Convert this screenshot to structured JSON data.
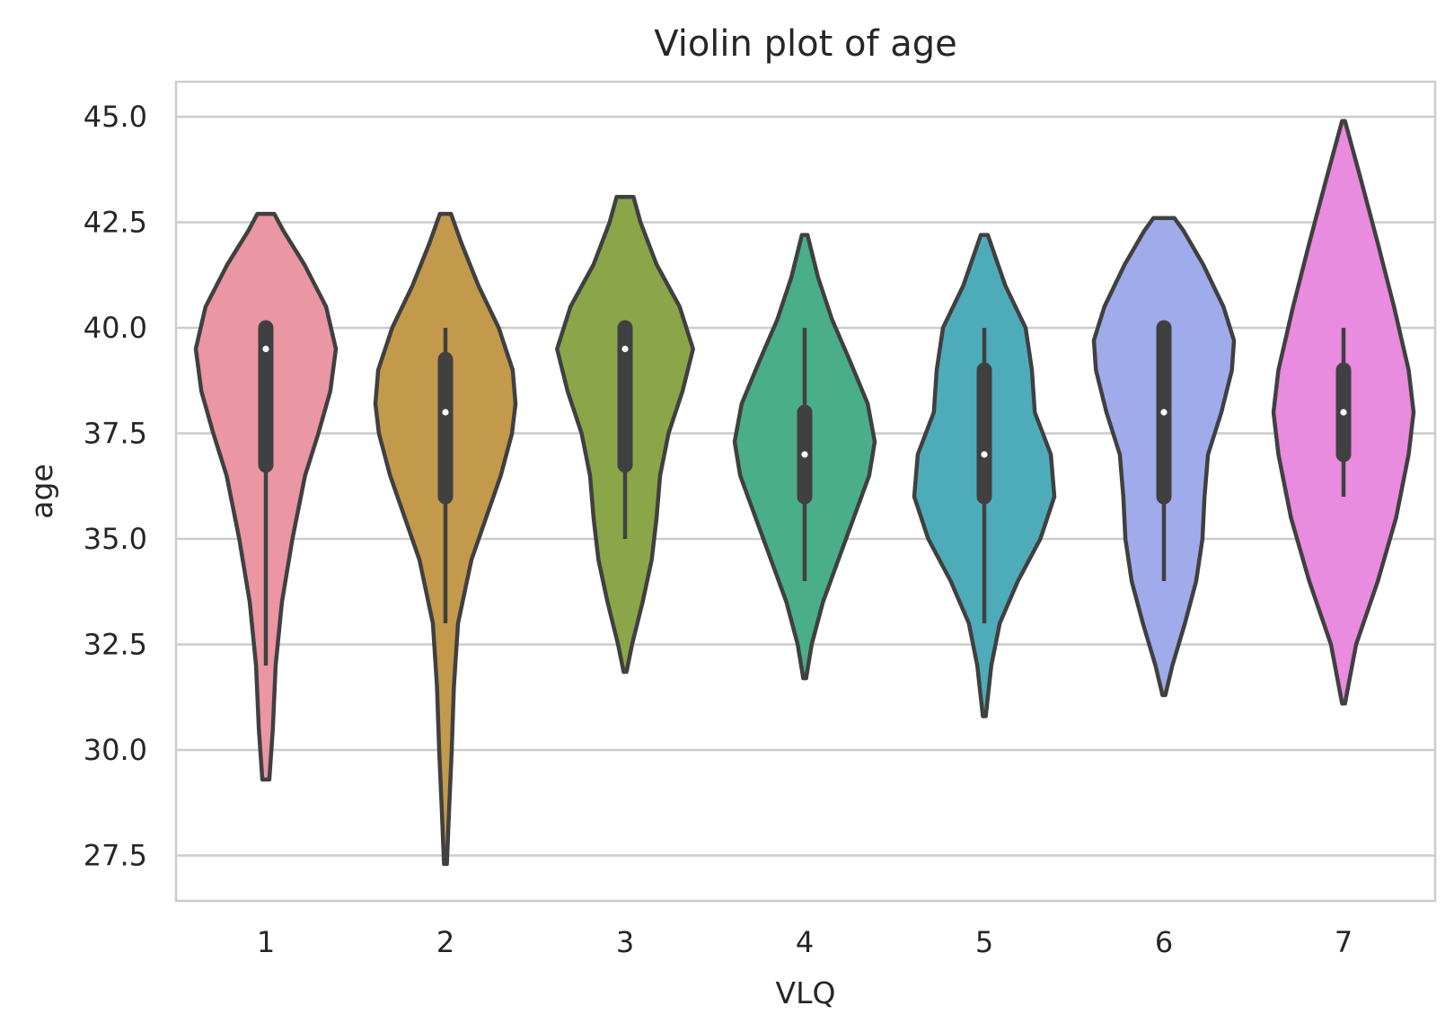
{
  "chart_data": {
    "type": "violin",
    "title": "Violin plot of age",
    "xlabel": "VLQ",
    "ylabel": "age",
    "categories": [
      "1",
      "2",
      "3",
      "4",
      "5",
      "6",
      "7"
    ],
    "yticks": [
      "27.5",
      "30.0",
      "32.5",
      "35.0",
      "37.5",
      "40.0",
      "42.5",
      "45.0"
    ],
    "ylim": [
      26.4,
      45.8
    ],
    "grid": true,
    "box_color": "#404040",
    "median_color": "#ffffff",
    "violins": [
      {
        "category": "1",
        "color": "#ea96a3",
        "min": 29.3,
        "max": 42.7,
        "whisker_low": 32.0,
        "whisker_high": 40.0,
        "q1": 36.75,
        "q3": 40.0,
        "median": 39.5,
        "profile": [
          [
            29.3,
            0.05
          ],
          [
            30.5,
            0.1
          ],
          [
            32.0,
            0.14
          ],
          [
            33.5,
            0.23
          ],
          [
            35.0,
            0.38
          ],
          [
            36.5,
            0.56
          ],
          [
            37.5,
            0.75
          ],
          [
            38.5,
            0.92
          ],
          [
            39.5,
            1.0
          ],
          [
            40.5,
            0.86
          ],
          [
            41.5,
            0.55
          ],
          [
            42.3,
            0.25
          ],
          [
            42.7,
            0.12
          ]
        ]
      },
      {
        "category": "2",
        "color": "#c39a4b",
        "min": 27.3,
        "max": 42.7,
        "whisker_low": 33.0,
        "whisker_high": 40.0,
        "q1": 36.0,
        "q3": 39.25,
        "median": 38.0,
        "profile": [
          [
            27.3,
            0.02
          ],
          [
            28.5,
            0.05
          ],
          [
            30.0,
            0.09
          ],
          [
            31.5,
            0.12
          ],
          [
            33.0,
            0.18
          ],
          [
            34.5,
            0.37
          ],
          [
            35.5,
            0.58
          ],
          [
            36.5,
            0.79
          ],
          [
            37.5,
            0.95
          ],
          [
            38.2,
            1.0
          ],
          [
            39.0,
            0.96
          ],
          [
            40.0,
            0.76
          ],
          [
            41.0,
            0.47
          ],
          [
            42.0,
            0.23
          ],
          [
            42.7,
            0.08
          ]
        ]
      },
      {
        "category": "3",
        "color": "#8aa648",
        "min": 31.85,
        "max": 43.1,
        "whisker_low": 35.0,
        "whisker_high": 40.0,
        "q1": 36.75,
        "q3": 40.0,
        "median": 39.5,
        "profile": [
          [
            31.85,
            0.02
          ],
          [
            32.5,
            0.1
          ],
          [
            33.5,
            0.25
          ],
          [
            34.5,
            0.38
          ],
          [
            35.5,
            0.45
          ],
          [
            36.5,
            0.5
          ],
          [
            37.5,
            0.62
          ],
          [
            38.5,
            0.82
          ],
          [
            39.5,
            0.97
          ],
          [
            40.5,
            0.78
          ],
          [
            41.5,
            0.45
          ],
          [
            42.5,
            0.22
          ],
          [
            43.1,
            0.12
          ]
        ]
      },
      {
        "category": "4",
        "color": "#4aae8a",
        "min": 31.7,
        "max": 42.2,
        "whisker_low": 34.0,
        "whisker_high": 40.0,
        "q1": 36.0,
        "q3": 38.0,
        "median": 37.0,
        "profile": [
          [
            31.7,
            0.02
          ],
          [
            32.5,
            0.1
          ],
          [
            33.5,
            0.26
          ],
          [
            34.5,
            0.48
          ],
          [
            35.5,
            0.7
          ],
          [
            36.5,
            0.92
          ],
          [
            37.3,
            1.0
          ],
          [
            38.2,
            0.9
          ],
          [
            39.2,
            0.65
          ],
          [
            40.2,
            0.39
          ],
          [
            41.2,
            0.19
          ],
          [
            42.2,
            0.04
          ]
        ]
      },
      {
        "category": "5",
        "color": "#4eacba",
        "min": 30.8,
        "max": 42.2,
        "whisker_low": 33.0,
        "whisker_high": 40.0,
        "q1": 36.0,
        "q3": 39.0,
        "median": 37.0,
        "profile": [
          [
            30.8,
            0.02
          ],
          [
            32.0,
            0.1
          ],
          [
            33.0,
            0.22
          ],
          [
            34.0,
            0.48
          ],
          [
            35.0,
            0.8
          ],
          [
            36.0,
            1.0
          ],
          [
            37.0,
            0.95
          ],
          [
            38.0,
            0.72
          ],
          [
            39.0,
            0.68
          ],
          [
            40.0,
            0.59
          ],
          [
            41.0,
            0.3
          ],
          [
            42.2,
            0.05
          ]
        ]
      },
      {
        "category": "6",
        "color": "#9fabea",
        "min": 31.3,
        "max": 42.6,
        "whisker_low": 34.0,
        "whisker_high": 40.0,
        "q1": 36.0,
        "q3": 40.0,
        "median": 38.0,
        "profile": [
          [
            31.3,
            0.02
          ],
          [
            32.0,
            0.12
          ],
          [
            33.0,
            0.3
          ],
          [
            34.0,
            0.46
          ],
          [
            35.0,
            0.55
          ],
          [
            36.0,
            0.58
          ],
          [
            37.0,
            0.63
          ],
          [
            38.0,
            0.82
          ],
          [
            39.0,
            0.97
          ],
          [
            39.7,
            1.0
          ],
          [
            40.5,
            0.85
          ],
          [
            41.5,
            0.56
          ],
          [
            42.3,
            0.28
          ],
          [
            42.6,
            0.15
          ]
        ]
      },
      {
        "category": "7",
        "color": "#e98bde",
        "min": 31.1,
        "max": 44.9,
        "whisker_low": 36.0,
        "whisker_high": 40.0,
        "q1": 37.0,
        "q3": 39.0,
        "median": 38.0,
        "profile": [
          [
            31.1,
            0.02
          ],
          [
            32.5,
            0.18
          ],
          [
            34.0,
            0.49
          ],
          [
            35.5,
            0.75
          ],
          [
            37.0,
            0.93
          ],
          [
            38.0,
            1.0
          ],
          [
            39.0,
            0.93
          ],
          [
            40.5,
            0.72
          ],
          [
            42.0,
            0.49
          ],
          [
            43.5,
            0.25
          ],
          [
            44.9,
            0.02
          ]
        ]
      }
    ]
  }
}
